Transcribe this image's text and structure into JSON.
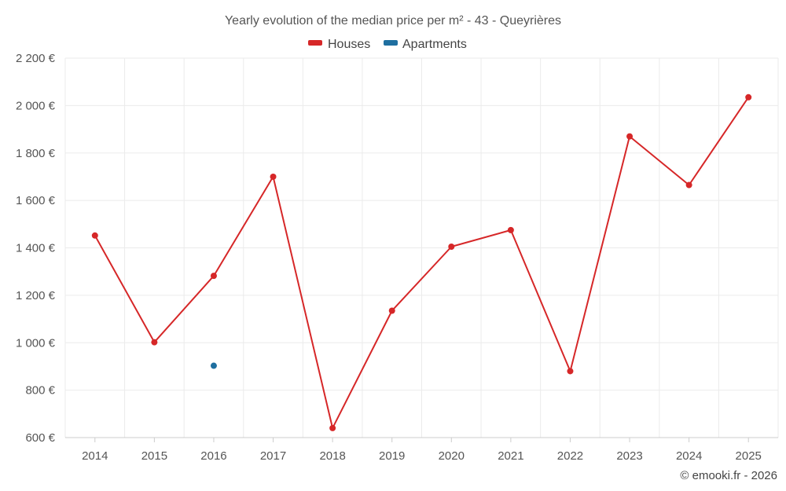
{
  "chart_data": {
    "type": "line",
    "title": "Yearly evolution of the median price per m² - 43 - Queyrières",
    "categories": [
      "2014",
      "2015",
      "2016",
      "2017",
      "2018",
      "2019",
      "2020",
      "2021",
      "2022",
      "2023",
      "2024",
      "2025"
    ],
    "y_ticks": [
      "600 €",
      "800 €",
      "1 000 €",
      "1 200 €",
      "1 400 €",
      "1 600 €",
      "1 800 €",
      "2 000 €",
      "2 200 €"
    ],
    "ylim": [
      600,
      2200
    ],
    "y_step": 200,
    "xlabel": "",
    "ylabel": "",
    "grid": true,
    "legend_position": "top-center",
    "series": [
      {
        "name": "Houses",
        "color": "#d62728",
        "values": [
          1452,
          1002,
          1282,
          1700,
          640,
          1135,
          1405,
          1475,
          880,
          1870,
          1665,
          2035
        ]
      },
      {
        "name": "Apartments",
        "color": "#1f6fa0",
        "values": [
          null,
          null,
          903,
          null,
          null,
          null,
          null,
          null,
          null,
          null,
          null,
          null
        ]
      }
    ]
  },
  "credit": "© emooki.fr - 2026"
}
